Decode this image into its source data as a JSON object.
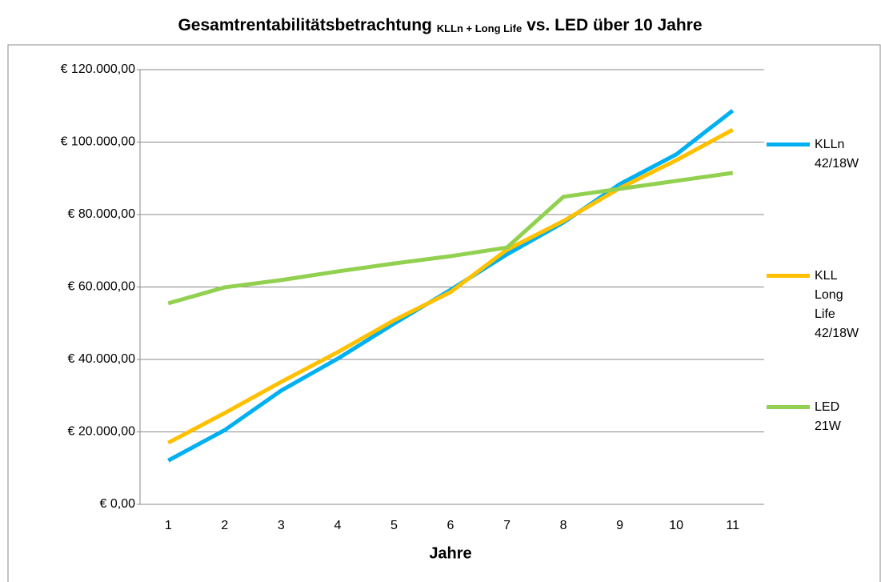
{
  "chart_data": {
    "type": "line",
    "title": "Gesamtrentabilitätsbetrachtung",
    "title_subscript": "KLLn + Long Life",
    "title_suffix": "vs. LED über 10 Jahre",
    "x_label": "Jahre",
    "categories": [
      "1",
      "2",
      "3",
      "4",
      "5",
      "6",
      "7",
      "8",
      "9",
      "10",
      "11"
    ],
    "series": [
      {
        "name": "KLLn 42/18W",
        "color": "#00b0f0",
        "values": [
          12100,
          20500,
          31400,
          40200,
          49900,
          59200,
          69000,
          77800,
          88400,
          96600,
          108700
        ]
      },
      {
        "name": "KLL Long Life 42/18W",
        "color": "#ffc000",
        "values": [
          17000,
          25200,
          33800,
          42000,
          50800,
          58600,
          70300,
          78200,
          87300,
          95000,
          103400
        ]
      },
      {
        "name": "LED 21W",
        "color": "#92d050",
        "values": [
          55500,
          59900,
          61900,
          64300,
          66500,
          68500,
          70900,
          84900,
          87100,
          89300,
          91500
        ]
      }
    ],
    "ylim": [
      0,
      120000
    ],
    "yticks": [
      {
        "value": 0,
        "label": "€ 0,00"
      },
      {
        "value": 20000,
        "label": "€ 20.000,00"
      },
      {
        "value": 40000,
        "label": "€ 40.000,00"
      },
      {
        "value": 60000,
        "label": "€ 60.000,00"
      },
      {
        "value": 80000,
        "label": "€ 80.000,00"
      },
      {
        "value": 100000,
        "label": "€ 100.000,00"
      },
      {
        "value": 120000,
        "label": "€ 120.000,00"
      }
    ],
    "grid": true,
    "legend": "right"
  }
}
